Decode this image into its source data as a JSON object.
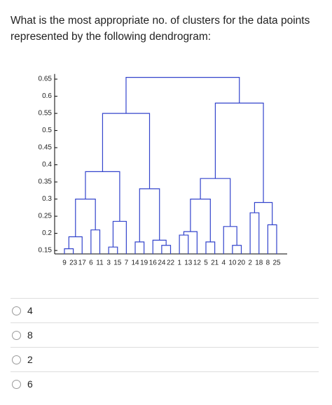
{
  "question": "What is the most appropriate no. of clusters for the data points represented by the following dendrogram:",
  "chart_data": {
    "type": "dendrogram",
    "leaves": [
      "9",
      "23",
      "17",
      "6",
      "11",
      "3",
      "15",
      "7",
      "14",
      "19",
      "16",
      "24",
      "22",
      "1",
      "13",
      "12",
      "5",
      "21",
      "4",
      "10",
      "20",
      "2",
      "18",
      "8",
      "25"
    ],
    "merge_heights": [
      0.155,
      0.19,
      0.21,
      0.3,
      0.16,
      0.235,
      0.38,
      0.175,
      0.165,
      0.18,
      0.33,
      0.55,
      0.195,
      0.205,
      0.175,
      0.3,
      0.165,
      0.22,
      0.36,
      0.26,
      0.225,
      0.29,
      0.58,
      0.655
    ],
    "color": "#3344cc",
    "ylim": [
      0.14,
      0.665
    ],
    "yticks": [
      0.65,
      0.6,
      0.55,
      0.5,
      0.45,
      0.4,
      0.35,
      0.3,
      0.25,
      0.2,
      0.15
    ]
  },
  "options": [
    "4",
    "8",
    "2",
    "6"
  ]
}
